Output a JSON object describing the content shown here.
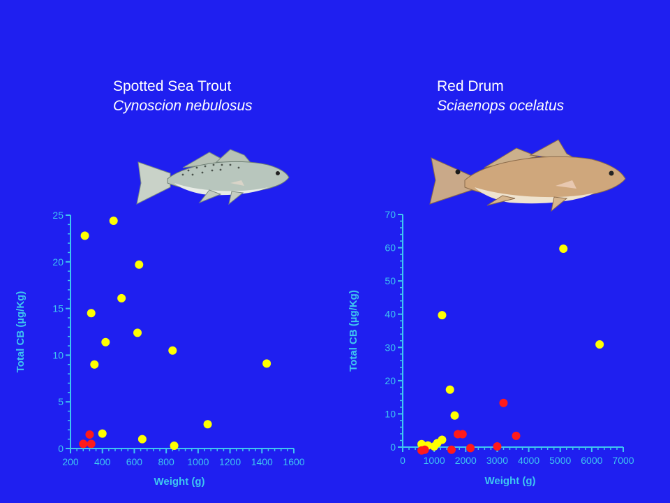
{
  "colors": {
    "background": "#1f1ff0",
    "axis": "#3ec6f0",
    "point_yellow": "#ffff00",
    "point_red": "#ff1a1a",
    "caption_text": "#ffffff"
  },
  "panels": [
    {
      "common_name": "Spotted Sea Trout",
      "scientific_name": "Cynoscion nebulosus",
      "fish_image": "spotted-sea-trout-illustration"
    },
    {
      "common_name": "Red Drum",
      "scientific_name": "Sciaenops ocelatus",
      "fish_image": "red-drum-illustration"
    }
  ],
  "chart_data": [
    {
      "type": "scatter",
      "title": "",
      "xlabel": "Weight (g)",
      "ylabel": "Total CB (µg/Kg)",
      "xlim": [
        200,
        1600
      ],
      "ylim": [
        0,
        25
      ],
      "x_ticks": [
        200,
        400,
        600,
        800,
        1000,
        1200,
        1400,
        1600
      ],
      "y_ticks": [
        0,
        5,
        10,
        15,
        20,
        25
      ],
      "grid": false,
      "series": [
        {
          "color": "yellow",
          "points": [
            [
              290,
              22.8
            ],
            [
              470,
              24.4
            ],
            [
              330,
              14.5
            ],
            [
              520,
              16.1
            ],
            [
              630,
              19.7
            ],
            [
              420,
              11.4
            ],
            [
              620,
              12.4
            ],
            [
              350,
              9.0
            ],
            [
              840,
              10.5
            ],
            [
              1430,
              9.1
            ],
            [
              1060,
              2.6
            ],
            [
              400,
              1.6
            ],
            [
              650,
              1.0
            ],
            [
              850,
              0.3
            ]
          ]
        },
        {
          "color": "red",
          "points": [
            [
              280,
              0.5
            ],
            [
              320,
              1.5
            ],
            [
              330,
              0.5
            ]
          ]
        }
      ]
    },
    {
      "type": "scatter",
      "title": "",
      "xlabel": "Weight (g)",
      "ylabel": "Total CB (µg/Kg)",
      "xlim": [
        0,
        7000
      ],
      "ylim": [
        0,
        70
      ],
      "x_ticks": [
        0,
        1000,
        2000,
        3000,
        4000,
        5000,
        6000,
        7000
      ],
      "y_ticks": [
        0,
        10,
        20,
        30,
        40,
        50,
        60,
        70
      ],
      "grid": false,
      "series": [
        {
          "color": "yellow",
          "points": [
            [
              5100,
              59.7
            ],
            [
              6250,
              30.9
            ],
            [
              1250,
              39.7
            ],
            [
              1500,
              17.3
            ],
            [
              1650,
              9.5
            ],
            [
              1250,
              2.2
            ],
            [
              600,
              0.9
            ],
            [
              800,
              0.5
            ],
            [
              1000,
              0.2
            ],
            [
              1100,
              1.2
            ]
          ]
        },
        {
          "color": "red",
          "points": [
            [
              600,
              -1.0
            ],
            [
              700,
              -0.8
            ],
            [
              1550,
              -0.8
            ],
            [
              1750,
              3.9
            ],
            [
              1900,
              3.9
            ],
            [
              2150,
              -0.3
            ],
            [
              3000,
              0.2
            ],
            [
              3200,
              13.3
            ],
            [
              3600,
              3.4
            ]
          ]
        }
      ]
    }
  ]
}
